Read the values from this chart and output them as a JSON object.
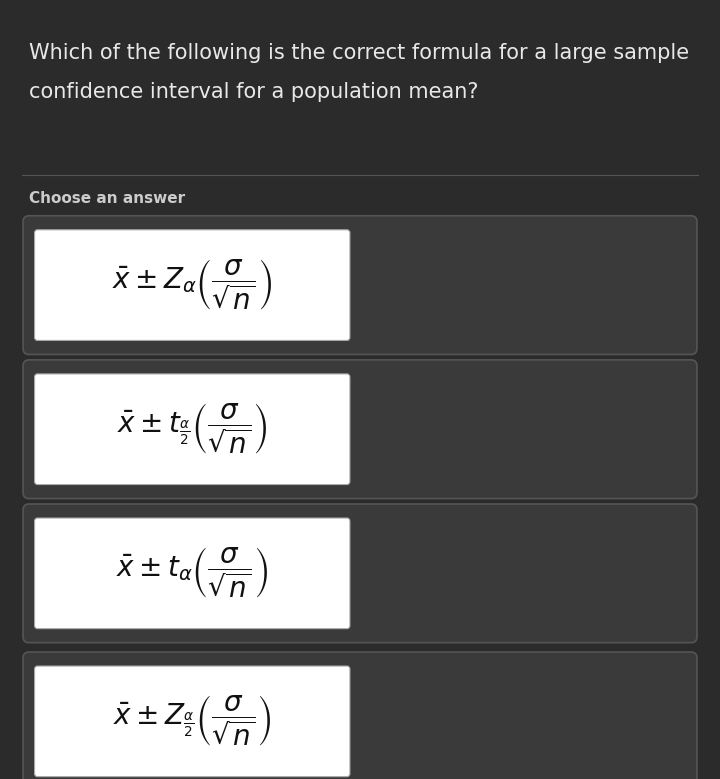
{
  "background_color": "#2b2b2b",
  "question_text_line1": "Which of the following is the correct formula for a large sample",
  "question_text_line2": "confidence interval for a population mean?",
  "question_color": "#e8e8e8",
  "question_fontsize": 15,
  "choose_text": "Choose an answer",
  "choose_color": "#cccccc",
  "choose_fontsize": 11,
  "answer_bg": "#ffffff",
  "answer_border": "#555555",
  "box_bg": "#3a3a3a",
  "formula_fontsize": 20,
  "separator_color": "#555555"
}
